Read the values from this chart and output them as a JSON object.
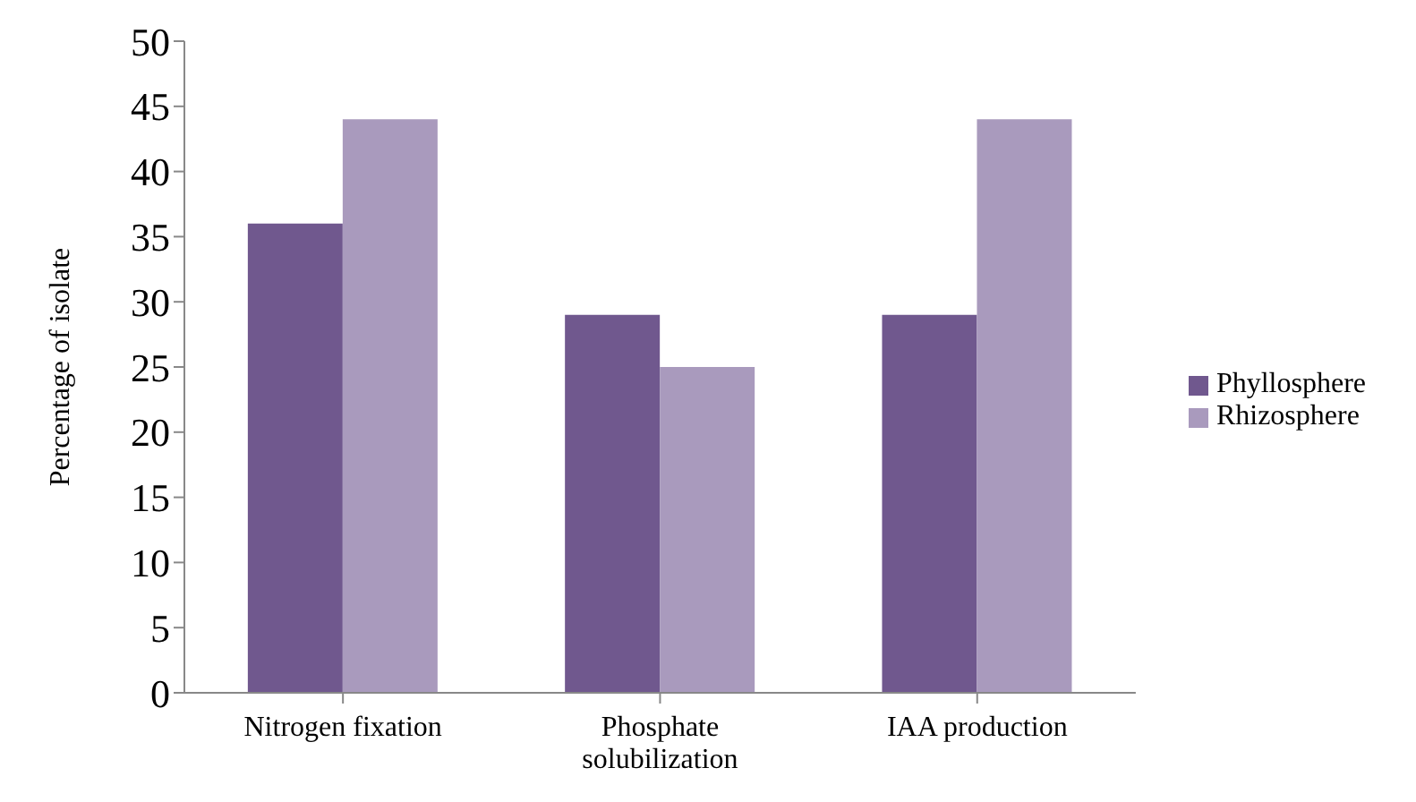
{
  "chart_data": {
    "type": "bar",
    "ylabel": "Percentage of isolate",
    "categories": [
      "Nitrogen fixation",
      "Phosphate solubilization",
      "IAA production"
    ],
    "series": [
      {
        "name": "Phyllosphere",
        "color": "#70588e",
        "values": [
          36,
          29,
          29
        ]
      },
      {
        "name": "Rhizosphere",
        "color": "#a99abd",
        "values": [
          44,
          25,
          44
        ]
      }
    ],
    "ylim": [
      0,
      50
    ],
    "yticks": [
      0,
      5,
      10,
      15,
      20,
      25,
      30,
      35,
      40,
      45,
      50
    ],
    "grid": false,
    "legend": "right"
  }
}
